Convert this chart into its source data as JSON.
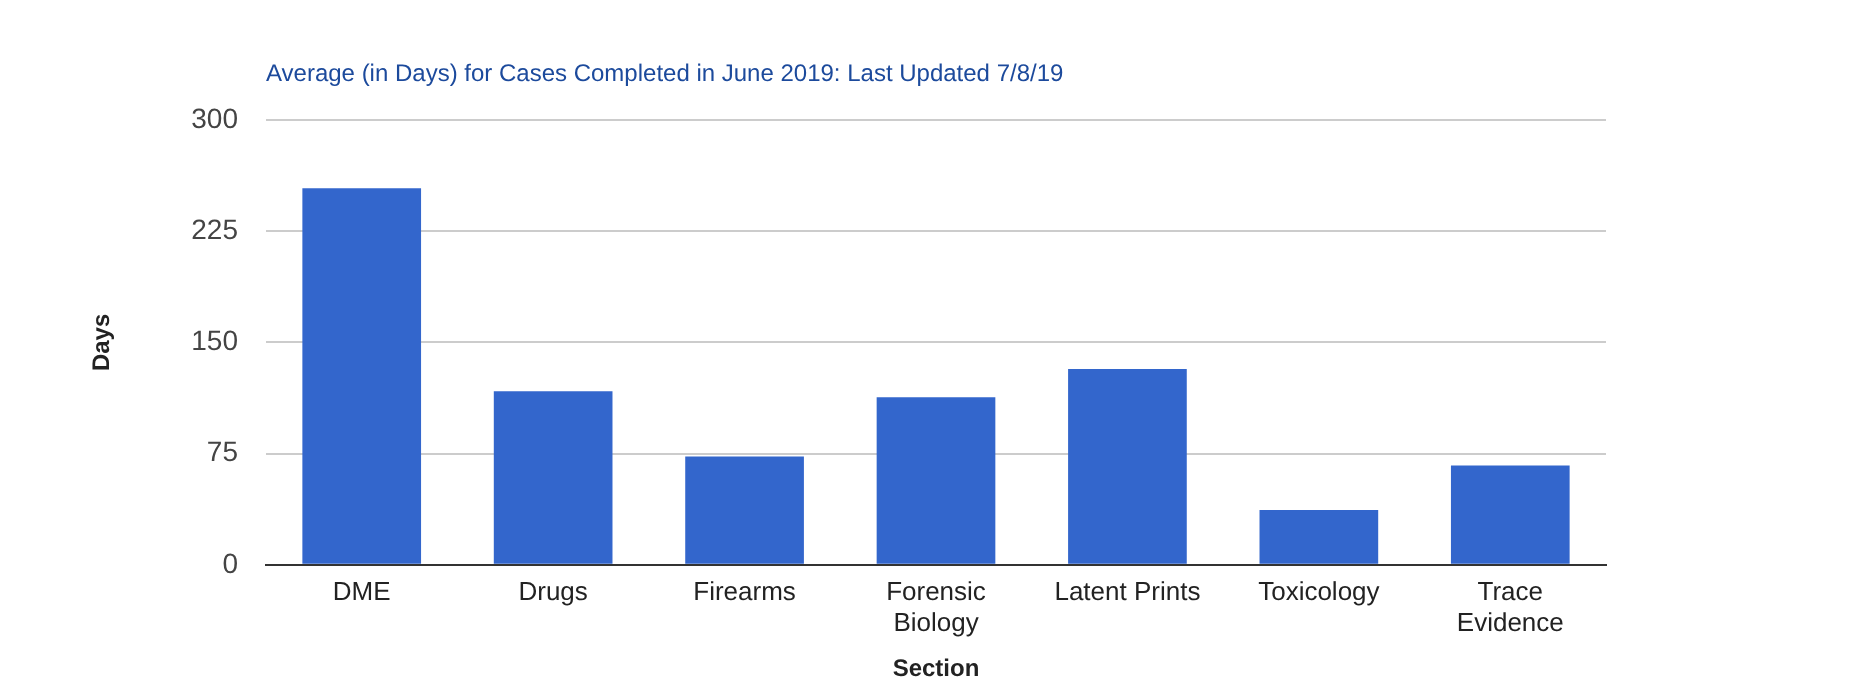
{
  "chart_data": {
    "type": "bar",
    "title": "Average (in Days) for Cases Completed in June 2019: Last Updated 7/8/19",
    "xlabel": "Section",
    "ylabel": "Days",
    "categories": [
      "DME",
      "Drugs",
      "Firearms",
      "Forensic Biology",
      "Latent Prints",
      "Toxicology",
      "Trace Evidence"
    ],
    "values": [
      254,
      117,
      73,
      113,
      132,
      37,
      67
    ],
    "color": "#3366cc",
    "ylim": [
      0,
      300
    ],
    "yticks": [
      0,
      75,
      150,
      225,
      300
    ],
    "grid": "y",
    "legend": false
  }
}
